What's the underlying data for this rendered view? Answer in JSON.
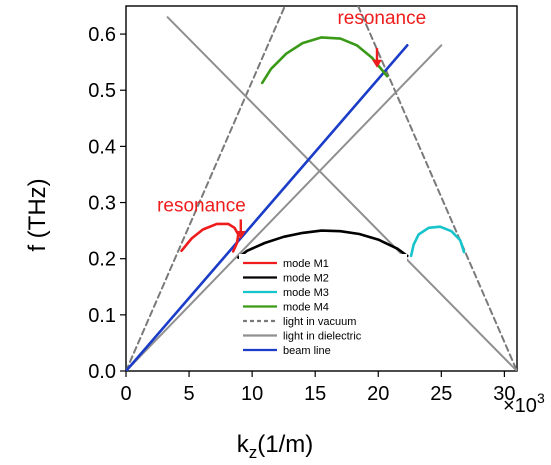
{
  "chart_data": {
    "type": "line",
    "xlabel_main": "k",
    "xlabel_sub": "z",
    "xlabel_unit": "(1/m)",
    "ylabel": "f (THz)",
    "x_multiplier": "×10",
    "x_multiplier_exp": "3",
    "xlim": [
      0,
      31
    ],
    "ylim": [
      0,
      0.65
    ],
    "x_ticks": [
      0,
      5,
      10,
      15,
      20,
      25,
      30
    ],
    "y_ticks": [
      0.0,
      0.1,
      0.2,
      0.3,
      0.4,
      0.5,
      0.6
    ],
    "x_tick_labels": [
      "0",
      "5",
      "10",
      "15",
      "20",
      "25",
      "30"
    ],
    "y_tick_labels": [
      "0.0",
      "0.1",
      "0.2",
      "0.3",
      "0.4",
      "0.5",
      "0.6"
    ],
    "legend_position": "bottom-center",
    "series": [
      {
        "name": "mode M1",
        "color": "#ee1c1c",
        "dash": "",
        "points": [
          [
            4.4,
            0.214
          ],
          [
            5.2,
            0.236
          ],
          [
            6.1,
            0.252
          ],
          [
            7.2,
            0.262
          ],
          [
            8.1,
            0.262
          ],
          [
            8.6,
            0.255
          ],
          [
            8.9,
            0.243
          ],
          [
            8.8,
            0.228
          ],
          [
            8.5,
            0.213
          ]
        ]
      },
      {
        "name": "mode M2",
        "color": "#000000",
        "dash": "",
        "points": [
          [
            8.9,
            0.202
          ],
          [
            9.6,
            0.214
          ],
          [
            11,
            0.228
          ],
          [
            12.5,
            0.239
          ],
          [
            14,
            0.246
          ],
          [
            15.5,
            0.25
          ],
          [
            17,
            0.249
          ],
          [
            18.5,
            0.244
          ],
          [
            20,
            0.234
          ],
          [
            21.5,
            0.218
          ],
          [
            22.3,
            0.205
          ]
        ]
      },
      {
        "name": "mode M3",
        "color": "#18c4cc",
        "dash": "",
        "points": [
          [
            22.6,
            0.205
          ],
          [
            22.8,
            0.225
          ],
          [
            23.2,
            0.243
          ],
          [
            24,
            0.255
          ],
          [
            24.9,
            0.257
          ],
          [
            25.8,
            0.249
          ],
          [
            26.5,
            0.233
          ],
          [
            26.8,
            0.212
          ]
        ]
      },
      {
        "name": "mode M4",
        "color": "#3a9a18",
        "dash": "",
        "points": [
          [
            10.8,
            0.513
          ],
          [
            11.5,
            0.538
          ],
          [
            12.7,
            0.565
          ],
          [
            14,
            0.584
          ],
          [
            15.5,
            0.594
          ],
          [
            17,
            0.592
          ],
          [
            18.3,
            0.58
          ],
          [
            19.5,
            0.558
          ],
          [
            20.3,
            0.536
          ],
          [
            20.7,
            0.525
          ]
        ]
      },
      {
        "name": "light in vacuum",
        "color": "#7a7a7a",
        "dash": "6,4",
        "points": [
          [
            0,
            0
          ],
          [
            12.6,
            0.65
          ]
        ]
      },
      {
        "name": "light in vacuum",
        "color": "#7a7a7a",
        "dash": "6,4",
        "points": [
          [
            18.4,
            0.65
          ],
          [
            31,
            0
          ]
        ]
      },
      {
        "name": "light in dielectric",
        "color": "#909090",
        "dash": "",
        "points": [
          [
            0,
            0
          ],
          [
            25,
            0.58
          ]
        ]
      },
      {
        "name": "light in dielectric",
        "color": "#909090",
        "dash": "",
        "points": [
          [
            3.3,
            0.63
          ],
          [
            31,
            0
          ]
        ]
      },
      {
        "name": "beam line",
        "color": "#1a3cc8",
        "dash": "",
        "points": [
          [
            0,
            0
          ],
          [
            22.3,
            0.58
          ]
        ]
      }
    ],
    "annotations": [
      {
        "text": "resonance",
        "color": "#ee1c1c",
        "text_at": [
          9.5,
          0.284
        ],
        "arrow_from": [
          9.1,
          0.27
        ],
        "arrow_to": [
          9.1,
          0.235
        ]
      },
      {
        "text": "resonance",
        "color": "#ee1c1c",
        "text_at": [
          23.8,
          0.618
        ],
        "arrow_from": [
          19.9,
          0.575
        ],
        "arrow_to": [
          19.9,
          0.54
        ]
      }
    ]
  }
}
